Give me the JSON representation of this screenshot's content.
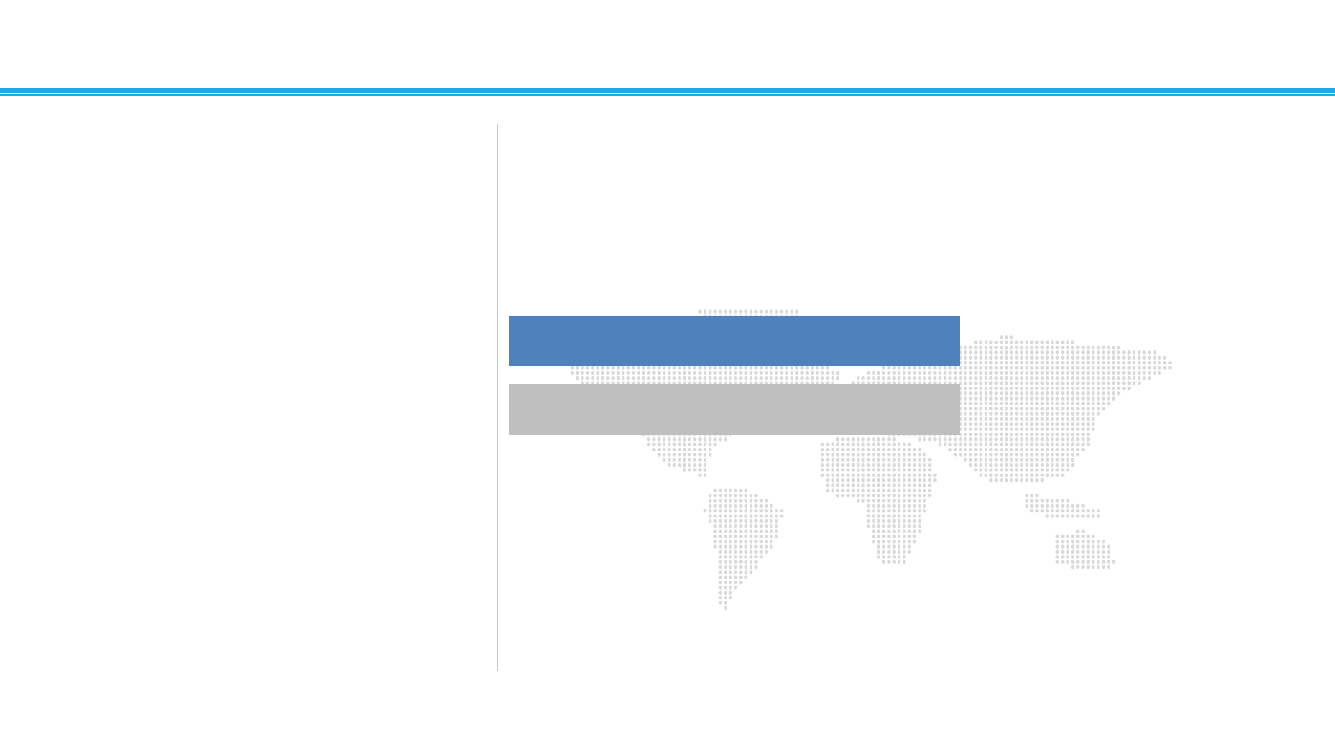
{
  "slide": {
    "colors": {
      "header_rule": "#12aee8",
      "primary_box": "#4f81bd",
      "secondary_box": "#bfbfbf",
      "map_dots": "#d9d9d9",
      "divider": "#c8c8c8"
    },
    "background_graphic": "dotted-world-map"
  }
}
